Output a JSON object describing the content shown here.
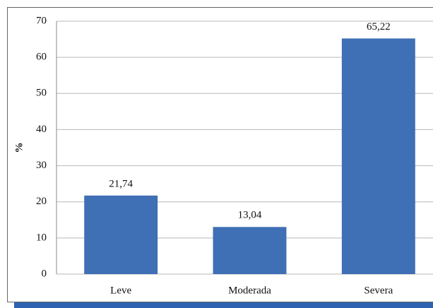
{
  "chart_data": {
    "type": "bar",
    "y_label": "%",
    "categories": [
      "Leve",
      "Moderada",
      "Severa"
    ],
    "values": [
      21.74,
      13.04,
      65.22
    ],
    "value_labels": [
      "21,74",
      "13,04",
      "65,22"
    ],
    "color": "#3f6fb5",
    "ylim": [
      0,
      70
    ],
    "yticks": [
      0,
      10,
      20,
      30,
      40,
      50,
      60,
      70
    ],
    "grid": true
  }
}
